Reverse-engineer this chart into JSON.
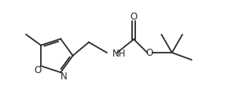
{
  "bg_color": "#ffffff",
  "line_color": "#2a2a2a",
  "line_width": 1.3,
  "font_size": 8.5,
  "font_family": "DejaVu Sans",
  "xlim": [
    0.0,
    10.0
  ],
  "ylim": [
    0.0,
    4.0
  ]
}
